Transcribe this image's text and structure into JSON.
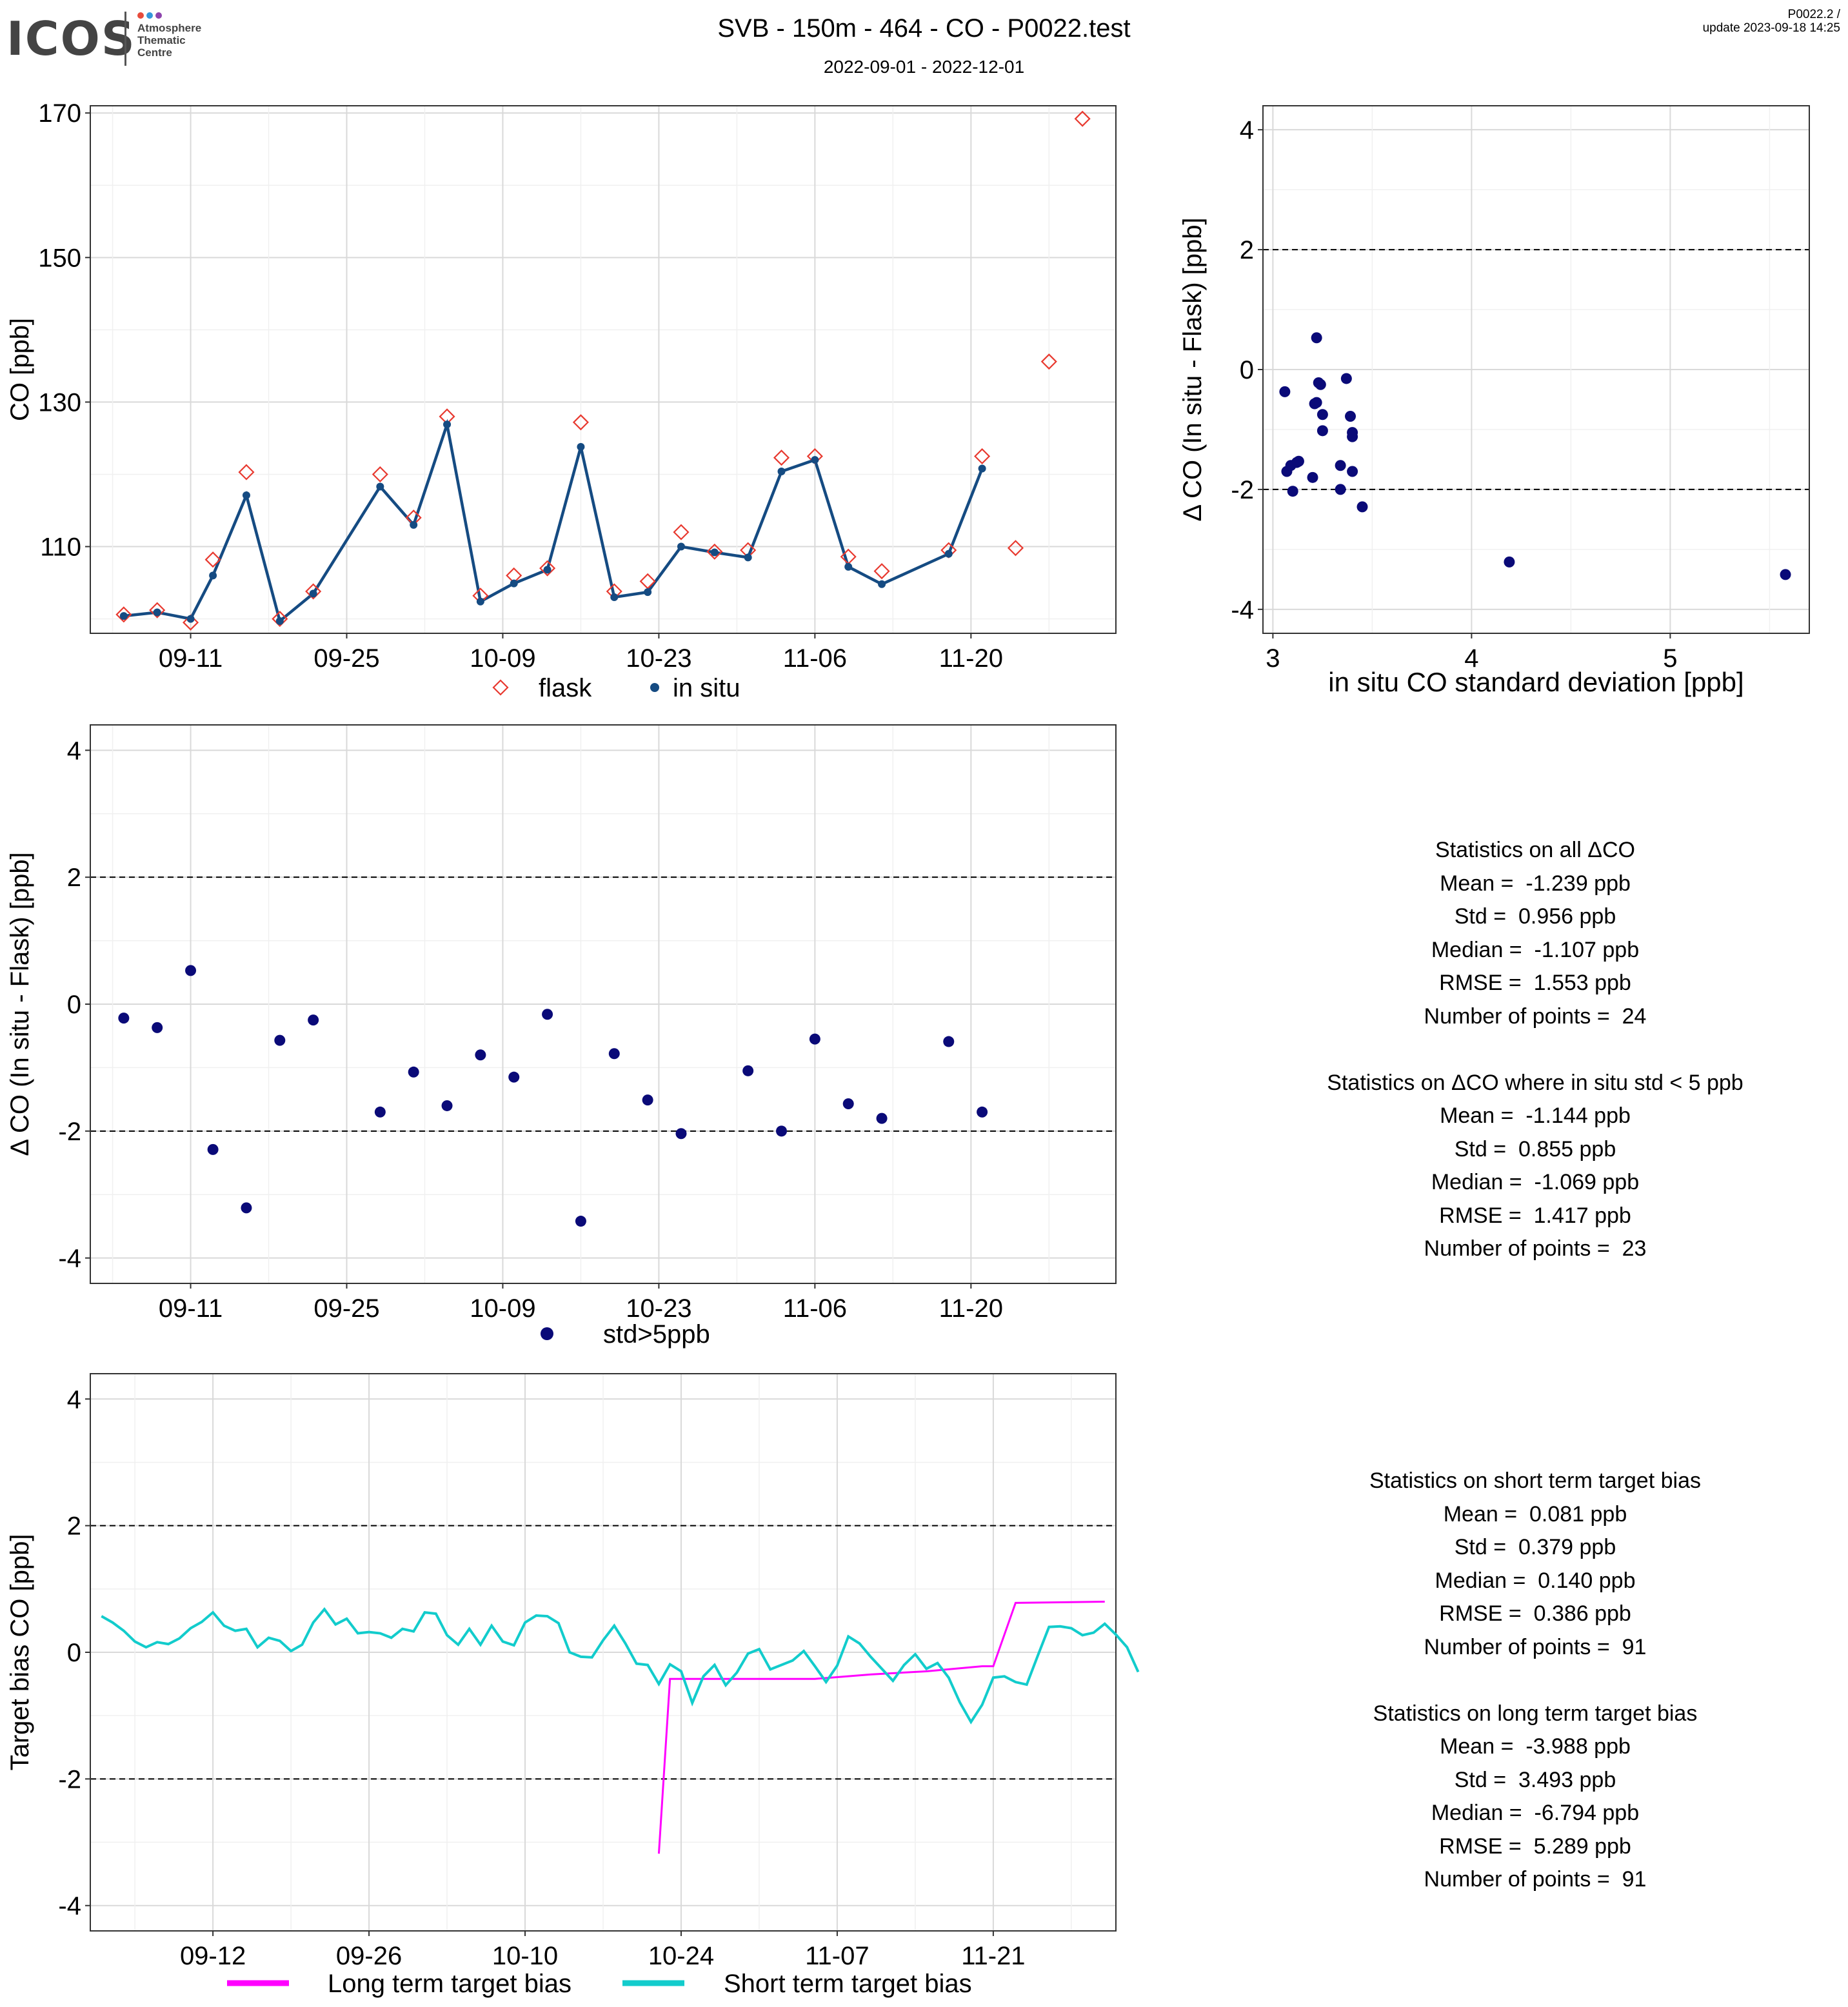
{
  "header": {
    "logo_word": "ICOS",
    "logo_sub": "Atmosphere\nThematic\nCentre",
    "logo_dot_colors": [
      "#e74c3c",
      "#3498db",
      "#8e44ad"
    ],
    "title": "SVB - 150m - 464 - CO - P0022.test",
    "subtitle": "2022-09-01 - 2022-12-01",
    "version": "P0022.2 /",
    "update": "update  2023-09-18 14:25"
  },
  "colors": {
    "flask": "#e8392f",
    "insitu": "#154b82",
    "points": "#0a0a78",
    "long_term": "#ff00ff",
    "short_term": "#12cccc",
    "grid_major": "#d9d9d9",
    "grid_minor": "#f0f0f0"
  },
  "chart_data": [
    {
      "id": "timeseries",
      "type": "line",
      "xlabel": "",
      "ylabel": "CO [ppb]",
      "xlim": [
        "2022-09-02",
        "2022-12-03"
      ],
      "ylim": [
        98,
        171
      ],
      "x_ticks": [
        "09-11",
        "09-25",
        "10-09",
        "10-23",
        "11-06",
        "11-20"
      ],
      "y_ticks": [
        110,
        130,
        150,
        170
      ],
      "grid": true,
      "legend": "bottom",
      "series": [
        {
          "name": "flask",
          "marker": "open-diamond",
          "x": [
            "2022-09-05",
            "2022-09-08",
            "2022-09-11",
            "2022-09-13",
            "2022-09-16",
            "2022-09-19",
            "2022-09-22",
            "2022-09-28",
            "2022-10-01",
            "2022-10-04",
            "2022-10-07",
            "2022-10-10",
            "2022-10-13",
            "2022-10-16",
            "2022-10-19",
            "2022-10-22",
            "2022-10-25",
            "2022-10-28",
            "2022-10-31",
            "2022-11-03",
            "2022-11-06",
            "2022-11-09",
            "2022-11-12",
            "2022-11-18",
            "2022-11-21",
            "2022-11-24",
            "2022-11-27",
            "2022-11-30"
          ],
          "values": [
            100.6,
            101.2,
            99.5,
            108.2,
            120.3,
            100.0,
            103.8,
            120.0,
            114.0,
            128.0,
            103.2,
            106.0,
            107.0,
            127.2,
            103.8,
            105.2,
            112.0,
            109.3,
            109.5,
            122.3,
            122.5,
            108.6,
            106.6,
            109.5,
            122.5,
            109.8,
            135.6,
            169.2
          ]
        },
        {
          "name": "in situ",
          "marker": "filled-circle",
          "x": [
            "2022-09-05",
            "2022-09-08",
            "2022-09-11",
            "2022-09-13",
            "2022-09-16",
            "2022-09-19",
            "2022-09-22",
            "2022-09-28",
            "2022-10-01",
            "2022-10-04",
            "2022-10-07",
            "2022-10-10",
            "2022-10-13",
            "2022-10-16",
            "2022-10-19",
            "2022-10-22",
            "2022-10-25",
            "2022-10-28",
            "2022-10-31",
            "2022-11-03",
            "2022-11-06",
            "2022-11-09",
            "2022-11-12",
            "2022-11-18",
            "2022-11-21"
          ],
          "values": [
            100.4,
            100.9,
            100.0,
            106.0,
            117.1,
            99.7,
            103.5,
            118.3,
            113.0,
            126.9,
            102.4,
            104.9,
            106.8,
            123.8,
            103.0,
            103.7,
            110.0,
            109.2,
            108.5,
            120.4,
            122.0,
            107.2,
            104.8,
            109.0,
            120.8
          ]
        }
      ]
    },
    {
      "id": "scatter_std",
      "type": "scatter",
      "xlabel": "in situ CO standard deviation [ppb]",
      "ylabel": "Δ CO (In situ - Flask) [ppb]",
      "xlim": [
        2.95,
        5.7
      ],
      "ylim": [
        -4.4,
        4.4
      ],
      "x_ticks": [
        3,
        4,
        5
      ],
      "y_ticks": [
        -4,
        -2,
        0,
        2,
        4
      ],
      "reference_lines": [
        -2,
        2
      ],
      "grid": true,
      "x": [
        3.06,
        3.07,
        3.1,
        3.09,
        3.12,
        3.13,
        3.2,
        3.21,
        3.22,
        3.23,
        3.22,
        3.24,
        3.25,
        3.25,
        3.34,
        3.34,
        3.37,
        3.39,
        3.4,
        3.4,
        3.4,
        3.45,
        4.19,
        5.58
      ],
      "values": [
        -0.37,
        -1.7,
        -2.03,
        -1.6,
        -1.55,
        -1.53,
        -1.8,
        -0.57,
        0.53,
        -0.22,
        -0.55,
        -0.25,
        -0.75,
        -1.02,
        -1.6,
        -2.0,
        -0.15,
        -0.78,
        -1.12,
        -1.05,
        -1.7,
        -2.29,
        -3.21,
        -3.42
      ]
    },
    {
      "id": "delta_time",
      "type": "scatter",
      "xlabel": "",
      "ylabel": "Δ CO (In situ - Flask) [ppb]",
      "xlim": [
        "2022-09-02",
        "2022-12-03"
      ],
      "ylim": [
        -4.4,
        4.4
      ],
      "x_ticks": [
        "09-11",
        "09-25",
        "10-09",
        "10-23",
        "11-06",
        "11-20"
      ],
      "y_ticks": [
        -4,
        -2,
        0,
        2,
        4
      ],
      "reference_lines": [
        -2,
        2
      ],
      "grid": true,
      "legend": "bottom",
      "series": [
        {
          "name": "std>5ppb",
          "x": [
            "2022-09-05",
            "2022-09-08",
            "2022-09-11",
            "2022-09-13",
            "2022-09-16",
            "2022-09-19",
            "2022-09-22",
            "2022-09-28",
            "2022-10-01",
            "2022-10-04",
            "2022-10-07",
            "2022-10-10",
            "2022-10-13",
            "2022-10-16",
            "2022-10-19",
            "2022-10-22",
            "2022-10-25",
            "2022-10-31",
            "2022-11-03",
            "2022-11-06",
            "2022-11-09",
            "2022-11-12",
            "2022-11-18",
            "2022-11-21"
          ],
          "values": [
            -0.22,
            -0.37,
            0.53,
            -2.29,
            -3.21,
            -0.57,
            -0.25,
            -1.7,
            -1.07,
            -1.6,
            -0.8,
            -1.15,
            -0.16,
            -3.42,
            -0.78,
            -1.51,
            -2.04,
            -1.05,
            -2.0,
            -0.55,
            -1.57,
            -1.8,
            -0.59,
            -1.7
          ]
        }
      ]
    },
    {
      "id": "target_bias",
      "type": "line",
      "xlabel": "",
      "ylabel": "Target bias CO [ppb]",
      "xlim": [
        "2022-09-01",
        "2022-12-02"
      ],
      "ylim": [
        -4.4,
        4.4
      ],
      "x_ticks": [
        "09-12",
        "09-26",
        "10-10",
        "10-24",
        "11-07",
        "11-21"
      ],
      "y_ticks": [
        -4,
        -2,
        0,
        2,
        4
      ],
      "reference_lines": [
        -2,
        2
      ],
      "grid": true,
      "legend": "bottom",
      "series": [
        {
          "name": "Long term target bias",
          "x": [
            "2022-10-22",
            "2022-10-23",
            "2022-11-02",
            "2022-11-05",
            "2022-11-10",
            "2022-11-15",
            "2022-11-20",
            "2022-11-21",
            "2022-11-23",
            "2022-12-01"
          ],
          "values": [
            -3.18,
            -0.42,
            -0.42,
            -0.42,
            -0.35,
            -0.3,
            -0.22,
            -0.22,
            0.78,
            0.8
          ]
        },
        {
          "name": "Short term target bias",
          "x_start": "2022-09-02",
          "x_step_days": 1,
          "values": [
            0.57,
            0.47,
            0.34,
            0.17,
            0.08,
            0.16,
            0.13,
            0.22,
            0.38,
            0.48,
            0.63,
            0.42,
            0.34,
            0.37,
            0.08,
            0.23,
            0.18,
            0.02,
            0.12,
            0.47,
            0.68,
            0.44,
            0.53,
            0.3,
            0.32,
            0.3,
            0.23,
            0.37,
            0.33,
            0.63,
            0.61,
            0.27,
            0.12,
            0.37,
            0.12,
            0.42,
            0.17,
            0.11,
            0.47,
            0.58,
            0.57,
            0.46,
            0.0,
            -0.07,
            -0.08,
            0.19,
            0.42,
            0.14,
            -0.18,
            -0.2,
            -0.5,
            -0.19,
            -0.3,
            -0.8,
            -0.38,
            -0.2,
            -0.52,
            -0.32,
            -0.02,
            0.05,
            -0.27,
            -0.2,
            -0.13,
            0.02,
            -0.22,
            -0.47,
            -0.21,
            0.25,
            0.14,
            -0.07,
            -0.26,
            -0.45,
            -0.2,
            -0.03,
            -0.26,
            -0.17,
            -0.4,
            -0.79,
            -1.1,
            -0.83,
            -0.4,
            -0.38,
            -0.47,
            -0.51,
            -0.05,
            0.4,
            0.41,
            0.38,
            0.27,
            0.31,
            0.45,
            0.28,
            0.08,
            -0.31
          ]
        }
      ]
    }
  ],
  "stats_all": {
    "lines": [
      "Statistics on all ΔCO",
      "Mean =  -1.239 ppb",
      "Std =  0.956 ppb",
      "Median =  -1.107 ppb",
      "RMSE =  1.553 ppb",
      "Number of points =  24",
      "",
      "Statistics on ΔCO where in situ std < 5 ppb",
      "Mean =  -1.144 ppb",
      "Std =  0.855 ppb",
      "Median =  -1.069 ppb",
      "RMSE =  1.417 ppb",
      "Number of points =  23"
    ]
  },
  "stats_target": {
    "lines": [
      "Statistics on short term target bias",
      "Mean =  0.081 ppb",
      "Std =  0.379 ppb",
      "Median =  0.140 ppb",
      "RMSE =  0.386 ppb",
      "Number of points =  91",
      "",
      "Statistics on long term target bias",
      "Mean =  -3.988 ppb",
      "Std =  3.493 ppb",
      "Median =  -6.794 ppb",
      "RMSE =  5.289 ppb",
      "Number of points =  91"
    ]
  }
}
